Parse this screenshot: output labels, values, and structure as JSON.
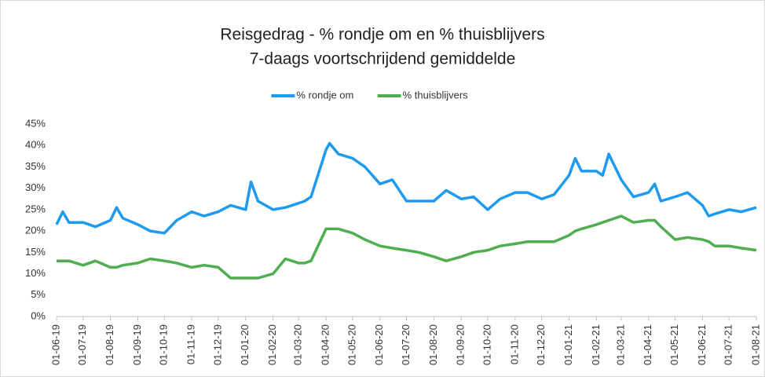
{
  "chart_data": {
    "type": "line",
    "title": "Reisgedrag - % rondje om en % thuisblijvers",
    "subtitle": "7-daags voortschrijdend gemiddelde",
    "legend": "top",
    "grid": false,
    "x": [
      "01-06-19",
      "08-06-19",
      "15-06-19",
      "01-07-19",
      "15-07-19",
      "01-08-19",
      "08-08-19",
      "15-08-19",
      "01-09-19",
      "15-09-19",
      "01-10-19",
      "15-10-19",
      "01-11-19",
      "15-11-19",
      "01-12-19",
      "15-12-19",
      "01-01-20",
      "07-01-20",
      "15-01-20",
      "01-02-20",
      "15-02-20",
      "01-03-20",
      "08-03-20",
      "15-03-20",
      "01-04-20",
      "05-04-20",
      "15-04-20",
      "01-05-20",
      "15-05-20",
      "01-06-20",
      "15-06-20",
      "01-07-20",
      "15-07-20",
      "01-08-20",
      "15-08-20",
      "01-09-20",
      "15-09-20",
      "01-10-20",
      "15-10-20",
      "01-11-20",
      "15-11-20",
      "01-12-20",
      "15-12-20",
      "01-01-21",
      "08-01-21",
      "15-01-21",
      "01-02-21",
      "08-02-21",
      "15-02-21",
      "01-03-21",
      "15-03-21",
      "01-04-21",
      "08-04-21",
      "15-04-21",
      "01-05-21",
      "15-05-21",
      "01-06-21",
      "08-06-21",
      "15-06-21",
      "01-07-21",
      "15-07-21",
      "01-08-21"
    ],
    "xlim": [
      "01-06-19",
      "01-08-21"
    ],
    "xticks": [
      "01-06-19",
      "01-07-19",
      "01-08-19",
      "01-09-19",
      "01-10-19",
      "01-11-19",
      "01-12-19",
      "01-01-20",
      "01-02-20",
      "01-03-20",
      "01-04-20",
      "01-05-20",
      "01-06-20",
      "01-07-20",
      "01-08-20",
      "01-09-20",
      "01-10-20",
      "01-11-20",
      "01-12-20",
      "01-01-21",
      "01-02-21",
      "01-03-21",
      "01-04-21",
      "01-05-21",
      "01-06-21",
      "01-07-21",
      "01-08-21"
    ],
    "ylim": [
      0,
      45
    ],
    "yticks": [
      {
        "value": 0,
        "label": "0%"
      },
      {
        "value": 5,
        "label": "5%"
      },
      {
        "value": 10,
        "label": "10%"
      },
      {
        "value": 15,
        "label": "15%"
      },
      {
        "value": 20,
        "label": "20%"
      },
      {
        "value": 25,
        "label": "25%"
      },
      {
        "value": 30,
        "label": "30%"
      },
      {
        "value": 35,
        "label": "35%"
      },
      {
        "value": 40,
        "label": "40%"
      },
      {
        "value": 45,
        "label": "45%"
      }
    ],
    "series": [
      {
        "name": "% rondje om",
        "color": "#1e9bef",
        "values": [
          21.5,
          24.5,
          22,
          22,
          21,
          22.5,
          25.5,
          23,
          21.5,
          20,
          19.5,
          22.5,
          24.5,
          23.5,
          24.5,
          26,
          25,
          31.5,
          27,
          25,
          25.5,
          26.5,
          27,
          28,
          39,
          40.5,
          38,
          37,
          35,
          31,
          32,
          27,
          27,
          27,
          29.5,
          27.5,
          28,
          25,
          27.5,
          29,
          29,
          27.5,
          28.5,
          33,
          37,
          34,
          34,
          33,
          38,
          32,
          28,
          29,
          31,
          27,
          28,
          29,
          26,
          23.5,
          24,
          25,
          24.5,
          25.5
        ]
      },
      {
        "name": "% thuisblijvers",
        "color": "#4fae4f",
        "values": [
          13,
          13,
          13,
          12,
          13,
          11.5,
          11.5,
          12,
          12.5,
          13.5,
          13,
          12.5,
          11.5,
          12,
          11.5,
          9,
          9,
          9,
          9,
          10,
          13.5,
          12.5,
          12.5,
          13,
          20.5,
          20.5,
          20.5,
          19.5,
          18,
          16.5,
          16,
          15.5,
          15,
          14,
          13,
          14,
          15,
          15.5,
          16.5,
          17,
          17.5,
          17.5,
          17.5,
          19,
          20,
          20.5,
          21.5,
          22,
          22.5,
          23.5,
          22,
          22.5,
          22.5,
          21,
          18,
          18.5,
          18,
          17.5,
          16.5,
          16.5,
          16,
          15.5
        ]
      }
    ]
  }
}
